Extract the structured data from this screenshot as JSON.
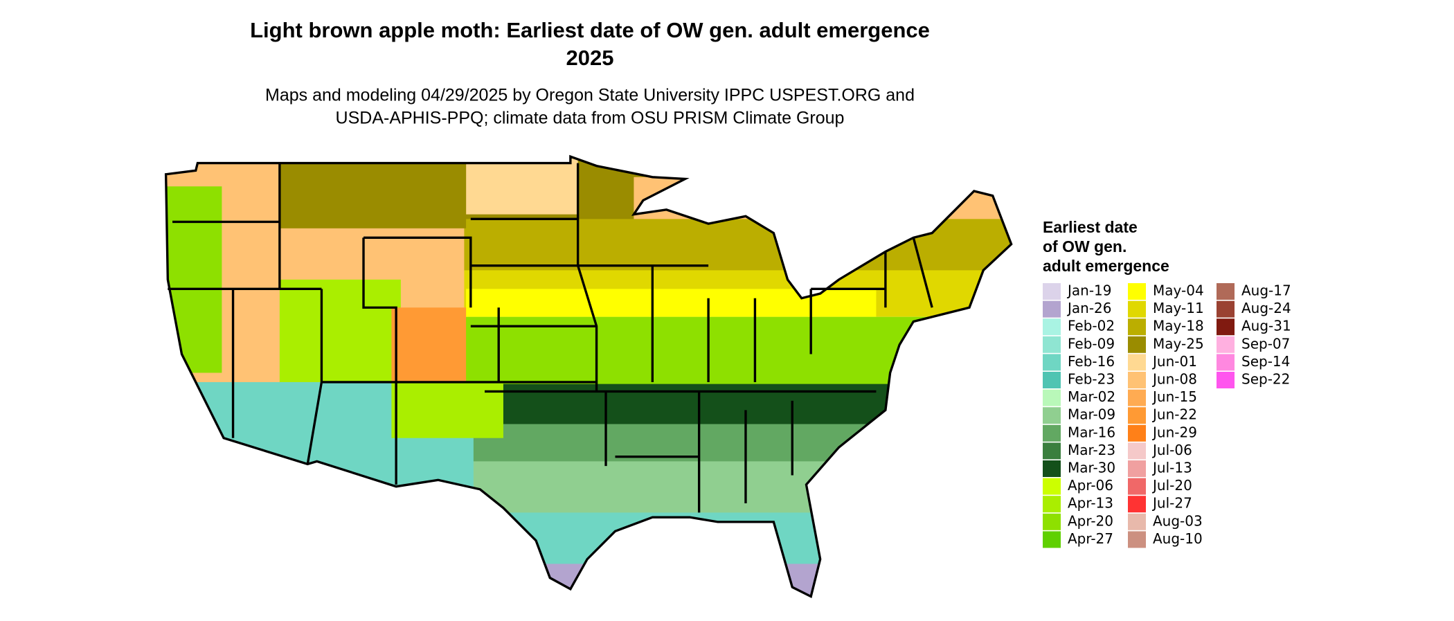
{
  "title": [
    "Light brown apple moth: Earliest date of OW gen. adult emergence",
    "2025"
  ],
  "subtitle": [
    "Maps and modeling 04/29/2025 by Oregon State University IPPC USPEST.ORG and",
    "USDA-APHIS-PPQ; climate data from OSU PRISM Climate Group"
  ],
  "legend": {
    "title": [
      "Earliest date",
      "of OW gen.",
      "adult emergence"
    ],
    "items": [
      {
        "label": "Jan-19",
        "color": "#dcd3ea"
      },
      {
        "label": "Jan-26",
        "color": "#b3a4cf"
      },
      {
        "label": "Feb-02",
        "color": "#a9f3e3"
      },
      {
        "label": "Feb-09",
        "color": "#8fe5d2"
      },
      {
        "label": "Feb-16",
        "color": "#6fd6c3"
      },
      {
        "label": "Feb-23",
        "color": "#4fc4b2"
      },
      {
        "label": "Mar-02",
        "color": "#b9f8b9"
      },
      {
        "label": "Mar-09",
        "color": "#90cf90"
      },
      {
        "label": "Mar-16",
        "color": "#62a862"
      },
      {
        "label": "Mar-23",
        "color": "#3a7f3e"
      },
      {
        "label": "Mar-30",
        "color": "#14501a"
      },
      {
        "label": "Apr-06",
        "color": "#ccff00"
      },
      {
        "label": "Apr-13",
        "color": "#aaee00"
      },
      {
        "label": "Apr-20",
        "color": "#8ee000"
      },
      {
        "label": "Apr-27",
        "color": "#5fd000"
      },
      {
        "label": "May-04",
        "color": "#ffff00"
      },
      {
        "label": "May-11",
        "color": "#e0d800"
      },
      {
        "label": "May-18",
        "color": "#bbae00"
      },
      {
        "label": "May-25",
        "color": "#9a8c00"
      },
      {
        "label": "Jun-01",
        "color": "#ffd992"
      },
      {
        "label": "Jun-08",
        "color": "#ffc274"
      },
      {
        "label": "Jun-15",
        "color": "#ffab52"
      },
      {
        "label": "Jun-22",
        "color": "#ff9a34"
      },
      {
        "label": "Jun-29",
        "color": "#ff8018"
      },
      {
        "label": "Jul-06",
        "color": "#f5c9c9"
      },
      {
        "label": "Jul-13",
        "color": "#f0a0a0"
      },
      {
        "label": "Jul-20",
        "color": "#f06868"
      },
      {
        "label": "Jul-27",
        "color": "#ff3333"
      },
      {
        "label": "Aug-03",
        "color": "#e8b9ab"
      },
      {
        "label": "Aug-10",
        "color": "#cc9080"
      },
      {
        "label": "Aug-17",
        "color": "#b06a58"
      },
      {
        "label": "Aug-24",
        "color": "#9a4232"
      },
      {
        "label": "Aug-31",
        "color": "#801a10"
      },
      {
        "label": "Sep-07",
        "color": "#ffb0e0"
      },
      {
        "label": "Sep-14",
        "color": "#ff88e0"
      },
      {
        "label": "Sep-22",
        "color": "#ff55ee"
      }
    ]
  }
}
